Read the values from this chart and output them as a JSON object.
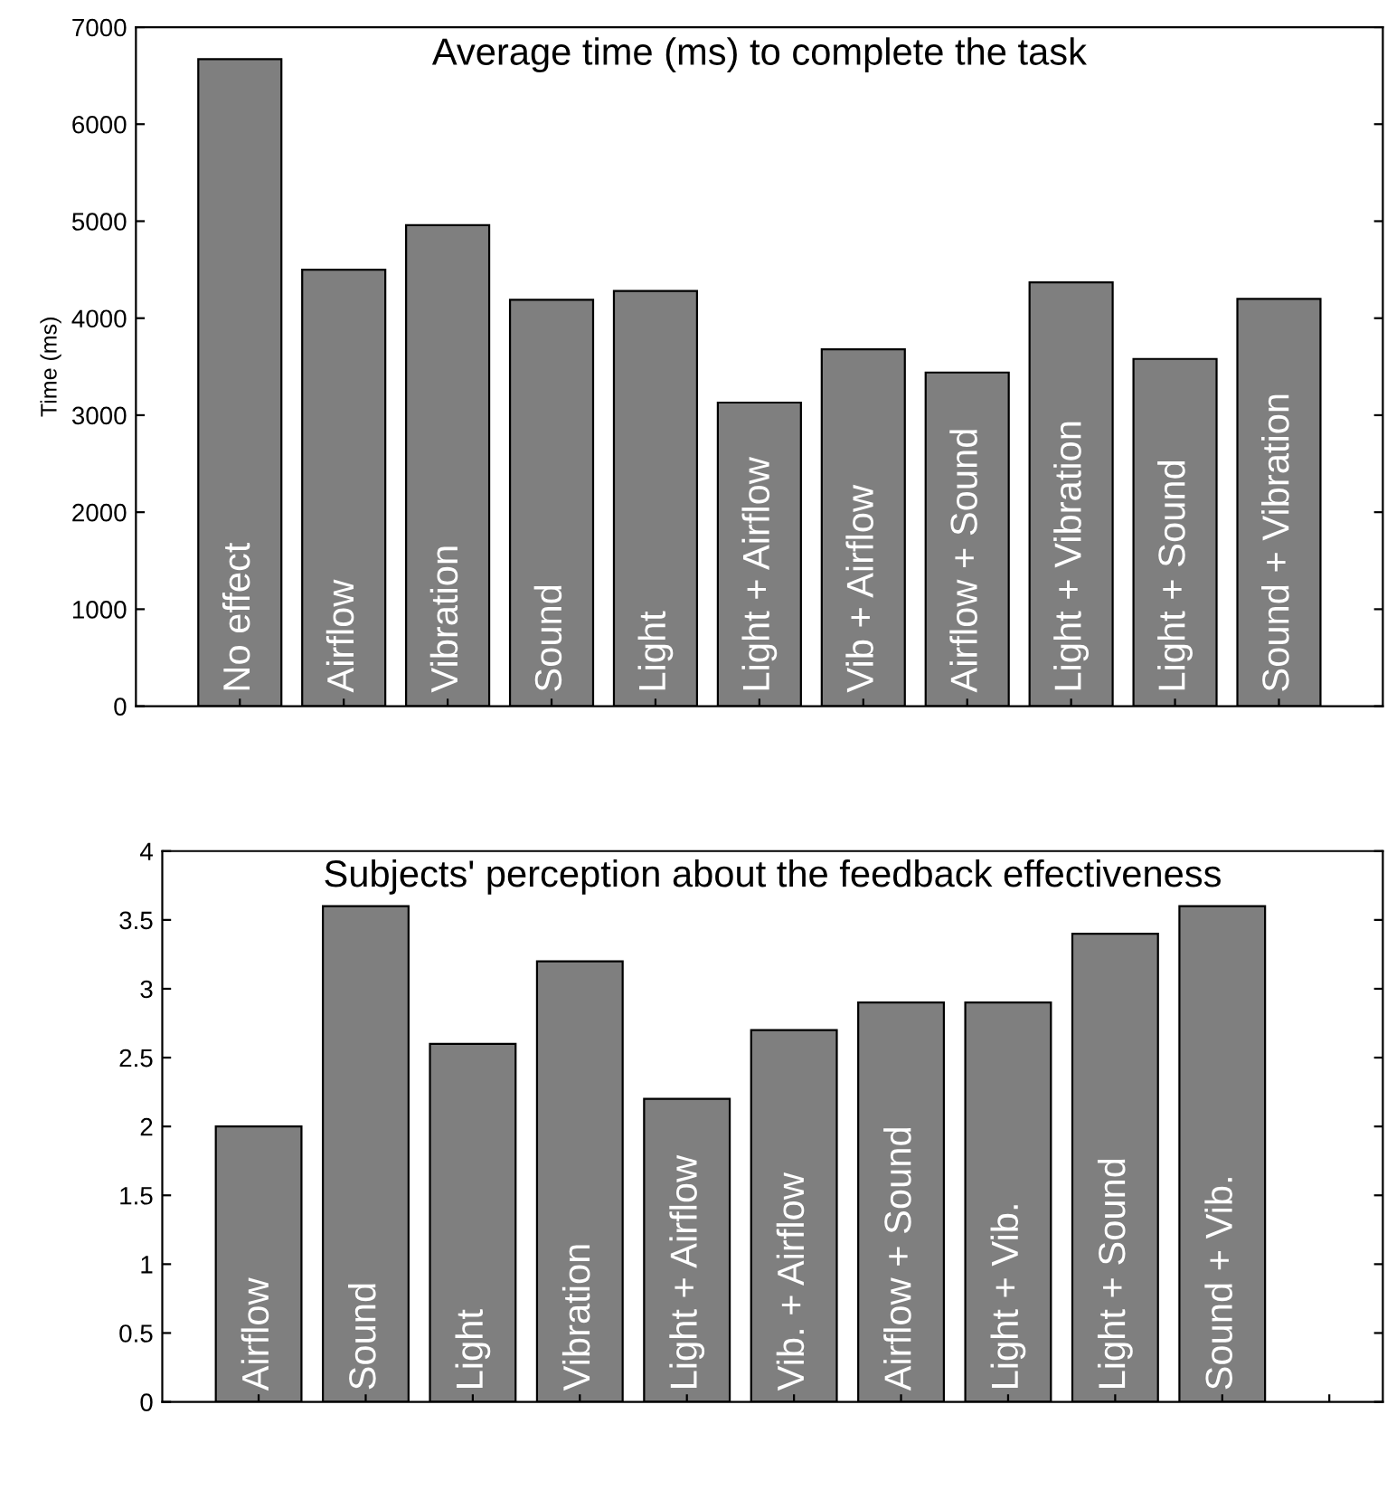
{
  "chart_data": [
    {
      "type": "bar",
      "title": "Average time (ms) to complete the task",
      "ylabel": "Time (ms)",
      "categories": [
        "No effect",
        "Airflow",
        "Vibration",
        "Sound",
        "Light",
        "Light + Airflow",
        "Vib + Airflow",
        "Airflow + Sound",
        "Light + Vibration",
        "Light + Sound",
        "Sound + Vibration"
      ],
      "values": [
        6670,
        4500,
        4960,
        4190,
        4280,
        3130,
        3680,
        3440,
        4370,
        3580,
        4200
      ],
      "color": "#7f7f7f",
      "ylim": [
        0,
        7000
      ],
      "yticks": [
        0,
        1000,
        2000,
        3000,
        4000,
        5000,
        6000,
        7000
      ],
      "grid": false
    },
    {
      "type": "bar",
      "title": "Subjects' perception about the feedback effectiveness",
      "categories": [
        "Airflow",
        "Sound",
        "Light",
        "Vibration",
        "Light + Airflow",
        "Vib. + Airflow",
        "Airflow + Sound",
        "Light + Vib.",
        "Light + Sound",
        "Sound + Vib.",
        null
      ],
      "values": [
        2.0,
        3.6,
        2.6,
        3.2,
        2.2,
        2.7,
        2.9,
        2.9,
        3.4,
        3.6,
        null
      ],
      "color": "#7f7f7f",
      "ylim": [
        0,
        4
      ],
      "yticks": [
        0,
        0.5,
        1,
        1.5,
        2,
        2.5,
        3,
        3.5,
        4
      ],
      "grid": false
    }
  ]
}
